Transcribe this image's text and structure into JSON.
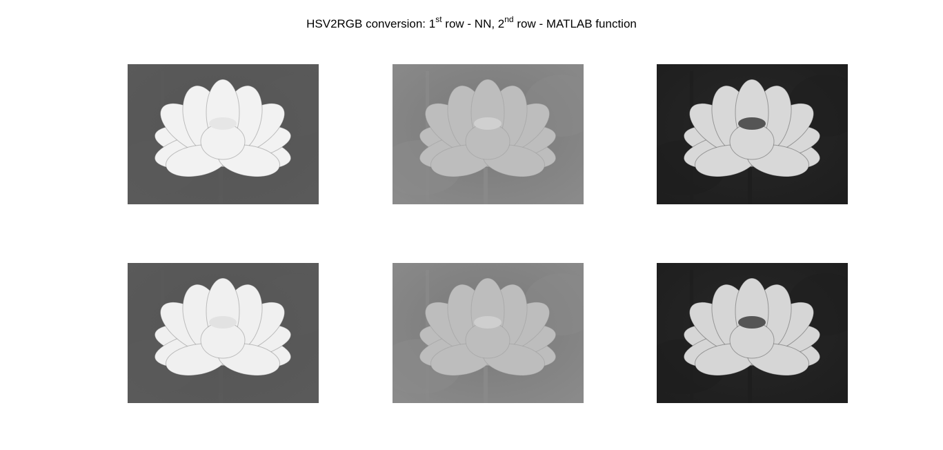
{
  "figure": {
    "title": {
      "part1": "HSV2RGB conversion: 1",
      "sup1": "st",
      "part2": " row - NN, 2",
      "sup2": "nd",
      "part3": " row - MATLAB function"
    }
  },
  "panels": [
    {
      "id": "row1-col1",
      "row": 1,
      "col": 1,
      "subject": "lotus-flower-grayscale",
      "channel": "hue",
      "bg": "#5a5a5a",
      "petal": "#f2f2f2",
      "pod": "#e6e6e6"
    },
    {
      "id": "row1-col2",
      "row": 1,
      "col": 2,
      "subject": "lotus-flower-grayscale",
      "channel": "saturation",
      "bg": "#8a8a8a",
      "petal": "#bdbdbd",
      "pod": "#d0d0d0"
    },
    {
      "id": "row1-col3",
      "row": 1,
      "col": 3,
      "subject": "lotus-flower-grayscale",
      "channel": "value",
      "bg": "#1e1e1e",
      "petal": "#d8d8d8",
      "pod": "#555555"
    },
    {
      "id": "row2-col1",
      "row": 2,
      "col": 1,
      "subject": "lotus-flower-grayscale",
      "channel": "hue",
      "bg": "#5a5a5a",
      "petal": "#f0f0f0",
      "pod": "#e2e2e2"
    },
    {
      "id": "row2-col2",
      "row": 2,
      "col": 2,
      "subject": "lotus-flower-grayscale",
      "channel": "saturation",
      "bg": "#8a8a8a",
      "petal": "#bdbdbd",
      "pod": "#cfcfcf"
    },
    {
      "id": "row2-col3",
      "row": 2,
      "col": 3,
      "subject": "lotus-flower-grayscale",
      "channel": "value",
      "bg": "#1e1e1e",
      "petal": "#d6d6d6",
      "pod": "#555555"
    }
  ]
}
